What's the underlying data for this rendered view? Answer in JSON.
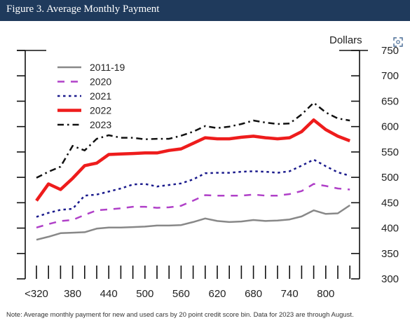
{
  "header": {
    "title": "Figure 3. Average Monthly Payment"
  },
  "icons": {
    "expand": "expand-icon"
  },
  "note": "Note: Average monthly payment for new and used cars by 20 point credit score bin. Data for 2023 are through August.",
  "chart_data": {
    "type": "line",
    "title": "Figure 3. Average Monthly Payment",
    "xlabel": "",
    "ylabel": "Dollars",
    "ylim": [
      300,
      750
    ],
    "yticks": [
      300,
      350,
      400,
      450,
      500,
      550,
      600,
      650,
      700,
      750
    ],
    "xticks": [
      "<320",
      "380",
      "440",
      "500",
      "560",
      "620",
      "680",
      "740",
      "800"
    ],
    "x": [
      "<320",
      "340",
      "360",
      "380",
      "400",
      "420",
      "440",
      "460",
      "480",
      "500",
      "520",
      "540",
      "560",
      "580",
      "600",
      "620",
      "640",
      "660",
      "680",
      "700",
      "720",
      "740",
      "760",
      "780",
      "800",
      "820",
      "840"
    ],
    "grid": false,
    "legend_position": "top-left",
    "series": [
      {
        "name": "2011-19",
        "color": "#888888",
        "dash": "solid",
        "width": 2.5,
        "values": [
          377,
          383,
          390,
          391,
          392,
          399,
          401,
          401,
          402,
          403,
          405,
          405,
          406,
          412,
          419,
          414,
          412,
          413,
          416,
          414,
          415,
          417,
          423,
          435,
          428,
          429,
          445
        ]
      },
      {
        "name": "2020",
        "color": "#b040c8",
        "dash": "dashed",
        "width": 2.5,
        "values": [
          401,
          408,
          414,
          416,
          426,
          435,
          437,
          439,
          442,
          442,
          440,
          441,
          444,
          454,
          465,
          464,
          464,
          464,
          466,
          464,
          464,
          467,
          473,
          487,
          483,
          478,
          476
        ]
      },
      {
        "name": "2021",
        "color": "#1a1a8c",
        "dash": "dotted",
        "width": 2.5,
        "values": [
          422,
          430,
          436,
          438,
          464,
          466,
          472,
          478,
          486,
          487,
          482,
          485,
          488,
          496,
          508,
          509,
          509,
          511,
          512,
          511,
          509,
          512,
          523,
          535,
          522,
          510,
          503
        ]
      },
      {
        "name": "2022",
        "color": "#ee1c1c",
        "dash": "solid",
        "width": 4.5,
        "values": [
          454,
          487,
          476,
          498,
          523,
          528,
          545,
          546,
          547,
          548,
          548,
          553,
          556,
          567,
          578,
          576,
          576,
          579,
          581,
          578,
          576,
          578,
          590,
          613,
          594,
          581,
          572
        ]
      },
      {
        "name": "2023",
        "color": "#111111",
        "dash": "dashdot",
        "width": 2.5,
        "values": [
          499,
          511,
          521,
          562,
          553,
          576,
          583,
          578,
          578,
          575,
          576,
          576,
          582,
          590,
          601,
          597,
          600,
          605,
          612,
          608,
          605,
          606,
          624,
          647,
          628,
          616,
          612
        ]
      }
    ]
  }
}
